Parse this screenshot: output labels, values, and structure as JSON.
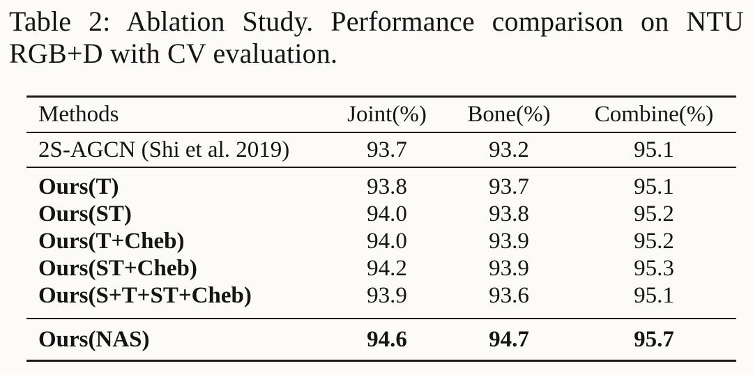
{
  "caption": {
    "line1": "Table 2: Ablation Study. Performance comparison on NTU",
    "line2": "RGB+D with CV evaluation."
  },
  "table": {
    "headers": [
      "Methods",
      "Joint(%)",
      "Bone(%)",
      "Combine(%)"
    ],
    "baseline": {
      "method": "2S-AGCN (Shi et al. 2019)",
      "joint": "93.7",
      "bone": "93.2",
      "combine": "95.1"
    },
    "ablation": [
      {
        "method": "Ours(T)",
        "joint": "93.8",
        "bone": "93.7",
        "combine": "95.1"
      },
      {
        "method": "Ours(ST)",
        "joint": "94.0",
        "bone": "93.8",
        "combine": "95.2"
      },
      {
        "method": "Ours(T+Cheb)",
        "joint": "94.0",
        "bone": "93.9",
        "combine": "95.2"
      },
      {
        "method": "Ours(ST+Cheb)",
        "joint": "94.2",
        "bone": "93.9",
        "combine": "95.3"
      },
      {
        "method": "Ours(S+T+ST+Cheb)",
        "joint": "93.9",
        "bone": "93.6",
        "combine": "95.1"
      }
    ],
    "final": {
      "method": "Ours(NAS)",
      "joint": "94.6",
      "bone": "94.7",
      "combine": "95.7"
    }
  },
  "colors": {
    "text": "#141414",
    "rule": "#1a1a1a",
    "background": "#fcfbf7"
  }
}
